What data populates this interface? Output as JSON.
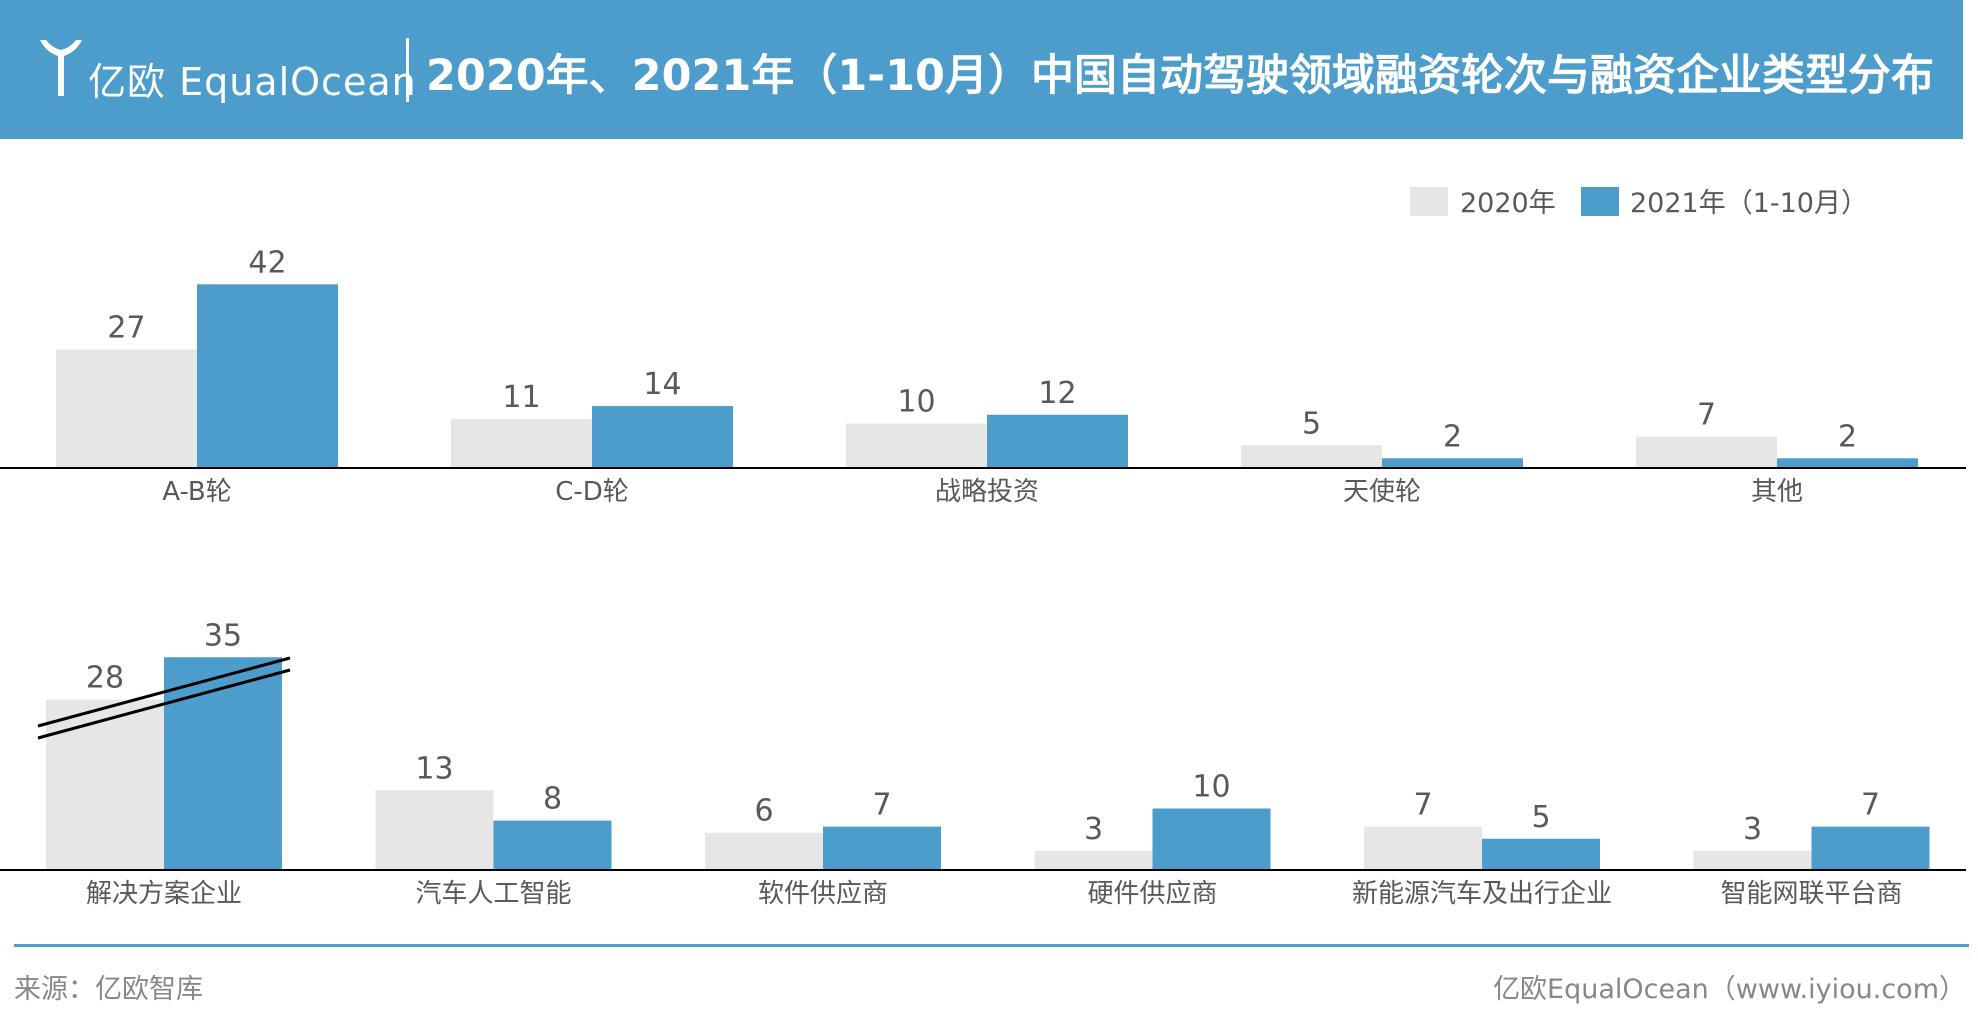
{
  "header": {
    "logo_text": "亿欧 EqualOcean",
    "title": "2020年、2021年（1-10月）中国自动驾驶领域融资轮次与融资企业类型分布"
  },
  "chart_data": [
    {
      "type": "bar",
      "categories": [
        "A-B轮",
        "C-D轮",
        "战略投资",
        "天使轮",
        "其他"
      ],
      "series": [
        {
          "name": "2020年",
          "values": [
            27,
            11,
            10,
            5,
            7
          ],
          "color": "#e6e6e6"
        },
        {
          "name": "2021年（1-10月）",
          "values": [
            42,
            14,
            12,
            2,
            2
          ],
          "color": "#4c9ccc"
        }
      ],
      "ylim": [
        0,
        42
      ],
      "data_labels": true,
      "grid": false,
      "legend_position": "top-right"
    },
    {
      "type": "bar",
      "categories": [
        "解决方案企业",
        "汽车人工智能",
        "软件供应商",
        "硬件供应商",
        "新能源汽车及出行企业",
        "智能网联平台商"
      ],
      "series": [
        {
          "name": "2020年",
          "values": [
            28,
            13,
            6,
            3,
            7,
            3
          ],
          "color": "#e6e6e6"
        },
        {
          "name": "2021年（1-10月）",
          "values": [
            35,
            8,
            7,
            10,
            5,
            7
          ],
          "color": "#4c9ccc"
        }
      ],
      "ylim": [
        0,
        35
      ],
      "axis_break": true,
      "data_labels": true,
      "grid": false
    }
  ],
  "footer": {
    "source": "来源：亿欧智库",
    "credit": "亿欧EqualOcean（www.iyiou.com）"
  },
  "colors": {
    "brand": "#4c9ccc",
    "series_2020": "#e6e6e6",
    "series_2021": "#4c9ccc",
    "label_text": "#595959"
  }
}
